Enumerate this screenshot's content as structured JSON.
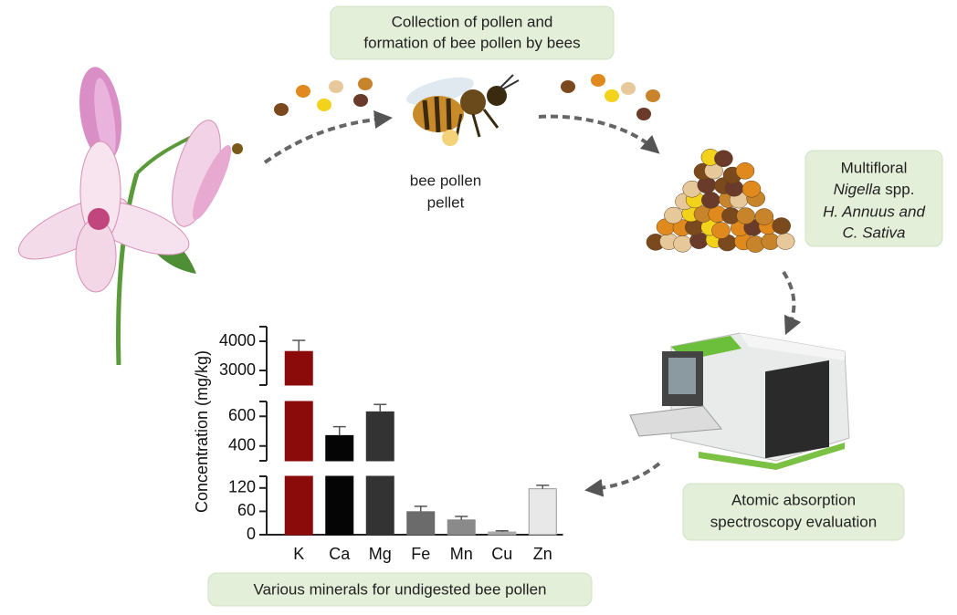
{
  "labels": {
    "collection": [
      "Collection of pollen and",
      "formation of bee pollen by bees"
    ],
    "pellet": [
      "bee pollen",
      "pellet"
    ],
    "pollen_type": {
      "line1": "Multifloral",
      "genus": "Nigella",
      "spp": "spp.",
      "line3": "H. Annuus and",
      "line4": "C. Sativa"
    },
    "evaluation": [
      "Atomic absorption",
      "spectroscopy evaluation"
    ],
    "caption": "Various minerals for undigested bee pollen"
  },
  "chart_data": {
    "type": "bar",
    "y_label": "Concentration (mg/kg)",
    "categories": [
      "K",
      "Ca",
      "Mg",
      "Fe",
      "Mn",
      "Cu",
      "Zn"
    ],
    "values": [
      3650,
      470,
      630,
      59,
      38,
      7,
      118
    ],
    "errors": [
      380,
      60,
      50,
      14,
      9,
      3,
      9
    ],
    "colors": [
      "#8b0a0a",
      "#050505",
      "#333333",
      "#6b6b6b",
      "#8a8a8a",
      "#a8a8a8",
      "#e8e8e8"
    ],
    "axis_segments": [
      {
        "ylim": [
          2500,
          4500
        ],
        "yticks": [
          3000,
          4000
        ]
      },
      {
        "ylim": [
          300,
          700
        ],
        "yticks": [
          400,
          600
        ]
      },
      {
        "ylim": [
          0,
          150
        ],
        "yticks": [
          0,
          60,
          120
        ]
      }
    ]
  }
}
